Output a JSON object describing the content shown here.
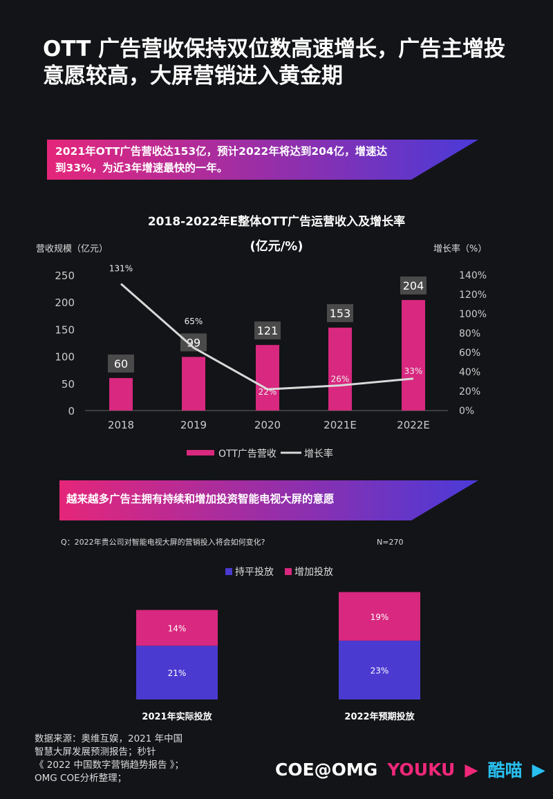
{
  "title": "OTT 广告营收保持双位数高速增长，广告主增投意愿较高，大屏营销进入黄金期",
  "banner1": {
    "line1": "2021年OTT广告营收达153亿，预计2022年将达到204亿，增速达",
    "line2": "到33%，为近3年增速最快的一年。"
  },
  "banner2": {
    "text": "越来越多广告主拥有持续和增加投资智能电视大屏的意愿"
  },
  "colors": {
    "bar": "#d8287f",
    "line": "#d9d9d9",
    "flat": "#4a3ad0",
    "increase": "#d8287f",
    "label_box": "#4a4a4a"
  },
  "chart_data": [
    {
      "type": "bar+line",
      "title": "2018-2022年E整体OTT广告运营收入及增长率",
      "subtitle": "(亿元/%)",
      "ylabel": "营收规模（亿元）",
      "y2label": "增长率（%）",
      "categories": [
        "2018",
        "2019",
        "2020",
        "2021E",
        "2022E"
      ],
      "ylim": [
        0,
        250
      ],
      "yticks": [
        "0",
        "50",
        "100",
        "150",
        "200",
        "250"
      ],
      "y2lim": [
        0,
        140
      ],
      "y2ticks": [
        "0%",
        "20%",
        "40%",
        "60%",
        "80%",
        "100%",
        "120%",
        "140%"
      ],
      "series": [
        {
          "name": "OTT广告营收",
          "kind": "bar",
          "values": [
            60,
            99,
            121,
            153,
            204
          ]
        },
        {
          "name": "增长率",
          "kind": "line",
          "axis": "right",
          "values": [
            131,
            65,
            22,
            26,
            33
          ],
          "labels": [
            "131%",
            "65%",
            "22%",
            "26%",
            "33%"
          ]
        }
      ],
      "legend": "bottom"
    },
    {
      "type": "stacked-bar",
      "question": "Q：2022年贵公司对智能电视大屏的营销投入将会如何变化?",
      "n": "N=270",
      "categories": [
        "2021年实际投放",
        "2022年预期投放"
      ],
      "series": [
        {
          "name": "持平投放",
          "values": [
            21,
            23
          ],
          "labels": [
            "21%",
            "23%"
          ]
        },
        {
          "name": "增加投放",
          "values": [
            14,
            19
          ],
          "labels": [
            "14%",
            "19%"
          ]
        }
      ],
      "legend": "top"
    }
  ],
  "source": [
    "数据来源：奥维互娱，2021 年中国",
    "智慧大屏发展预测报告；秒针",
    "《 2022 中国数字营销趋势报告 》；",
    "OMG COE分析整理；"
  ],
  "logos": {
    "coe": "COE@OMG",
    "youku": "YOUKU",
    "kumiao": "酷喵"
  }
}
